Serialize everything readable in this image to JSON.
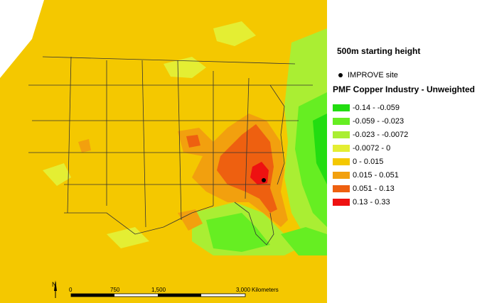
{
  "legend": {
    "heading": "500m starting height",
    "site_label": "IMPROVE site",
    "title": "PMF Copper Industry - Unweighted",
    "classes": [
      {
        "label": "-0.14 - -0.059",
        "color": "#22dd11"
      },
      {
        "label": "-0.059 - -0.023",
        "color": "#66ee22"
      },
      {
        "label": "-0.023 - -0.0072",
        "color": "#aaee33"
      },
      {
        "label": "-0.0072 - 0",
        "color": "#e4ee33"
      },
      {
        "label": "0 - 0.015",
        "color": "#f4c800"
      },
      {
        "label": "0.015 - 0.051",
        "color": "#f2a00e"
      },
      {
        "label": "0.051 - 0.13",
        "color": "#ee6010"
      },
      {
        "label": "0.13 - 0.33",
        "color": "#ee1111"
      }
    ]
  },
  "scale_bar": {
    "ticks": [
      "0",
      "750",
      "1,500",
      "3,000"
    ],
    "unit": "Kilometers"
  },
  "north_arrow": {
    "label": "N"
  }
}
